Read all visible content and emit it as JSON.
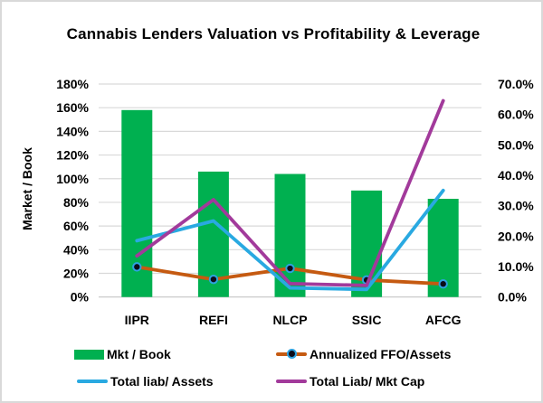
{
  "window": {
    "background": "#ffffff",
    "border_color": "#d9d9d9"
  },
  "chart_data": {
    "type": "combo-bar-line",
    "title": "Cannabis Lenders Valuation vs Profitability & Leverage",
    "categories": [
      "IIPR",
      "REFI",
      "NLCP",
      "SSIC",
      "AFCG"
    ],
    "left_axis": {
      "label": "Market / Book",
      "min": 0,
      "max": 180,
      "step": 20,
      "tick_labels": [
        "0%",
        "20%",
        "40%",
        "60%",
        "80%",
        "100%",
        "120%",
        "140%",
        "160%",
        "180%"
      ]
    },
    "right_axis": {
      "min": 0,
      "max": 70,
      "step": 10,
      "tick_labels": [
        "0.0%",
        "10.0%",
        "20.0%",
        "30.0%",
        "40.0%",
        "50.0%",
        "60.0%",
        "70.0%"
      ]
    },
    "grid": true,
    "gridline_color": "#d9d9d9",
    "axis_line_color": "#c6c6c6",
    "series": [
      {
        "name": "Mkt / Book",
        "type": "bar",
        "axis": "left",
        "color": "#00b050",
        "values": [
          158,
          106,
          104,
          90,
          83
        ]
      },
      {
        "name": "Annualized FFO/Assets",
        "type": "line-marker",
        "axis": "right",
        "color": "#c55a11",
        "marker_fill": "#0b0b18",
        "marker_ring": "#2da2e0",
        "values": [
          9.9,
          5.8,
          9.4,
          5.6,
          4.3
        ]
      },
      {
        "name": "Total liab/ Assets",
        "type": "line",
        "axis": "right",
        "color": "#29a9e1",
        "values": [
          18.5,
          25.0,
          3.0,
          2.5,
          35.0
        ]
      },
      {
        "name": "Total Liab/ Mkt Cap",
        "type": "line",
        "axis": "right",
        "color": "#a23a9b",
        "values": [
          13.5,
          32.0,
          4.4,
          3.8,
          64.5
        ]
      }
    ],
    "legend": {
      "position": "bottom",
      "columns": 2
    }
  }
}
